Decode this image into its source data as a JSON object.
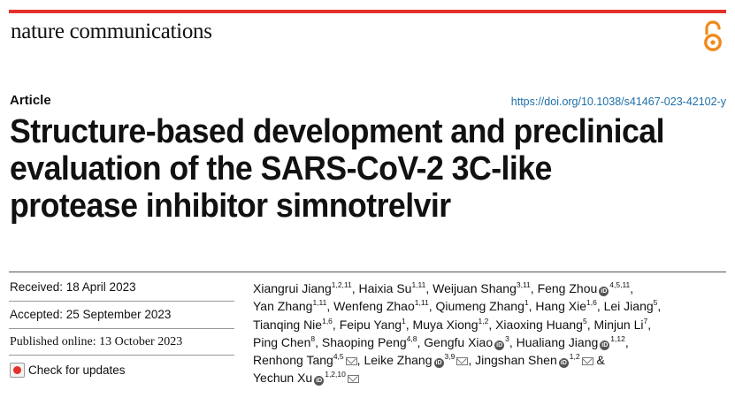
{
  "journal": "nature communications",
  "accent_color": "#e3302a",
  "link_color": "#1d6fa8",
  "article_type": "Article",
  "doi": "https://doi.org/10.1038/s41467-023-42102-y",
  "title_lines": [
    "Structure-based development and preclinical",
    "evaluation of the SARS-CoV-2 3C-like",
    "protease inhibitor simnotrelvir"
  ],
  "received": "Received: 18 April 2023",
  "accepted": "Accepted: 25 September 2023",
  "published": "Published online: 13 October 2023",
  "check_updates": "Check for updates",
  "author_lines": [
    [
      {
        "name": "Xiangrui Jiang",
        "sup": "1,2,11",
        "orcid": false,
        "mail": false,
        "sep": ", "
      },
      {
        "name": "Haixia Su",
        "sup": "1,11",
        "orcid": false,
        "mail": false,
        "sep": ", "
      },
      {
        "name": "Weijuan Shang",
        "sup": "3,11",
        "orcid": false,
        "mail": false,
        "sep": ", "
      },
      {
        "name": "Feng Zhou",
        "sup": "4,5,11",
        "orcid": true,
        "mail": false,
        "sep": ","
      }
    ],
    [
      {
        "name": "Yan Zhang",
        "sup": "1,11",
        "orcid": false,
        "mail": false,
        "sep": ", "
      },
      {
        "name": "Wenfeng Zhao",
        "sup": "1,11",
        "orcid": false,
        "mail": false,
        "sep": ", "
      },
      {
        "name": "Qiumeng Zhang",
        "sup": "1",
        "orcid": false,
        "mail": false,
        "sep": ", "
      },
      {
        "name": "Hang Xie",
        "sup": "1,6",
        "orcid": false,
        "mail": false,
        "sep": ", "
      },
      {
        "name": "Lei Jiang",
        "sup": "5",
        "orcid": false,
        "mail": false,
        "sep": ","
      }
    ],
    [
      {
        "name": "Tianqing Nie",
        "sup": "1,6",
        "orcid": false,
        "mail": false,
        "sep": ", "
      },
      {
        "name": "Feipu Yang",
        "sup": "1",
        "orcid": false,
        "mail": false,
        "sep": ", "
      },
      {
        "name": "Muya Xiong",
        "sup": "1,2",
        "orcid": false,
        "mail": false,
        "sep": ", "
      },
      {
        "name": "Xiaoxing Huang",
        "sup": "5",
        "orcid": false,
        "mail": false,
        "sep": ", "
      },
      {
        "name": "Minjun Li",
        "sup": "7",
        "orcid": false,
        "mail": false,
        "sep": ","
      }
    ],
    [
      {
        "name": "Ping Chen",
        "sup": "8",
        "orcid": false,
        "mail": false,
        "sep": ", "
      },
      {
        "name": "Shaoping Peng",
        "sup": "4,8",
        "orcid": false,
        "mail": false,
        "sep": ", "
      },
      {
        "name": "Gengfu Xiao",
        "sup": "3",
        "orcid": true,
        "mail": false,
        "sep": ", "
      },
      {
        "name": "Hualiang Jiang",
        "sup": "1,12",
        "orcid": true,
        "mail": false,
        "sep": ","
      }
    ],
    [
      {
        "name": "Renhong Tang",
        "sup": "4,5",
        "orcid": false,
        "mail": true,
        "sep": ", "
      },
      {
        "name": "Leike Zhang",
        "sup": "3,9",
        "orcid": true,
        "mail": true,
        "sep": ", "
      },
      {
        "name": "Jingshan Shen",
        "sup": "1,2",
        "orcid": true,
        "mail": true,
        "sep": " &"
      }
    ],
    [
      {
        "name": "Yechun Xu",
        "sup": "1,2,10",
        "orcid": true,
        "mail": true,
        "sep": ""
      }
    ]
  ]
}
